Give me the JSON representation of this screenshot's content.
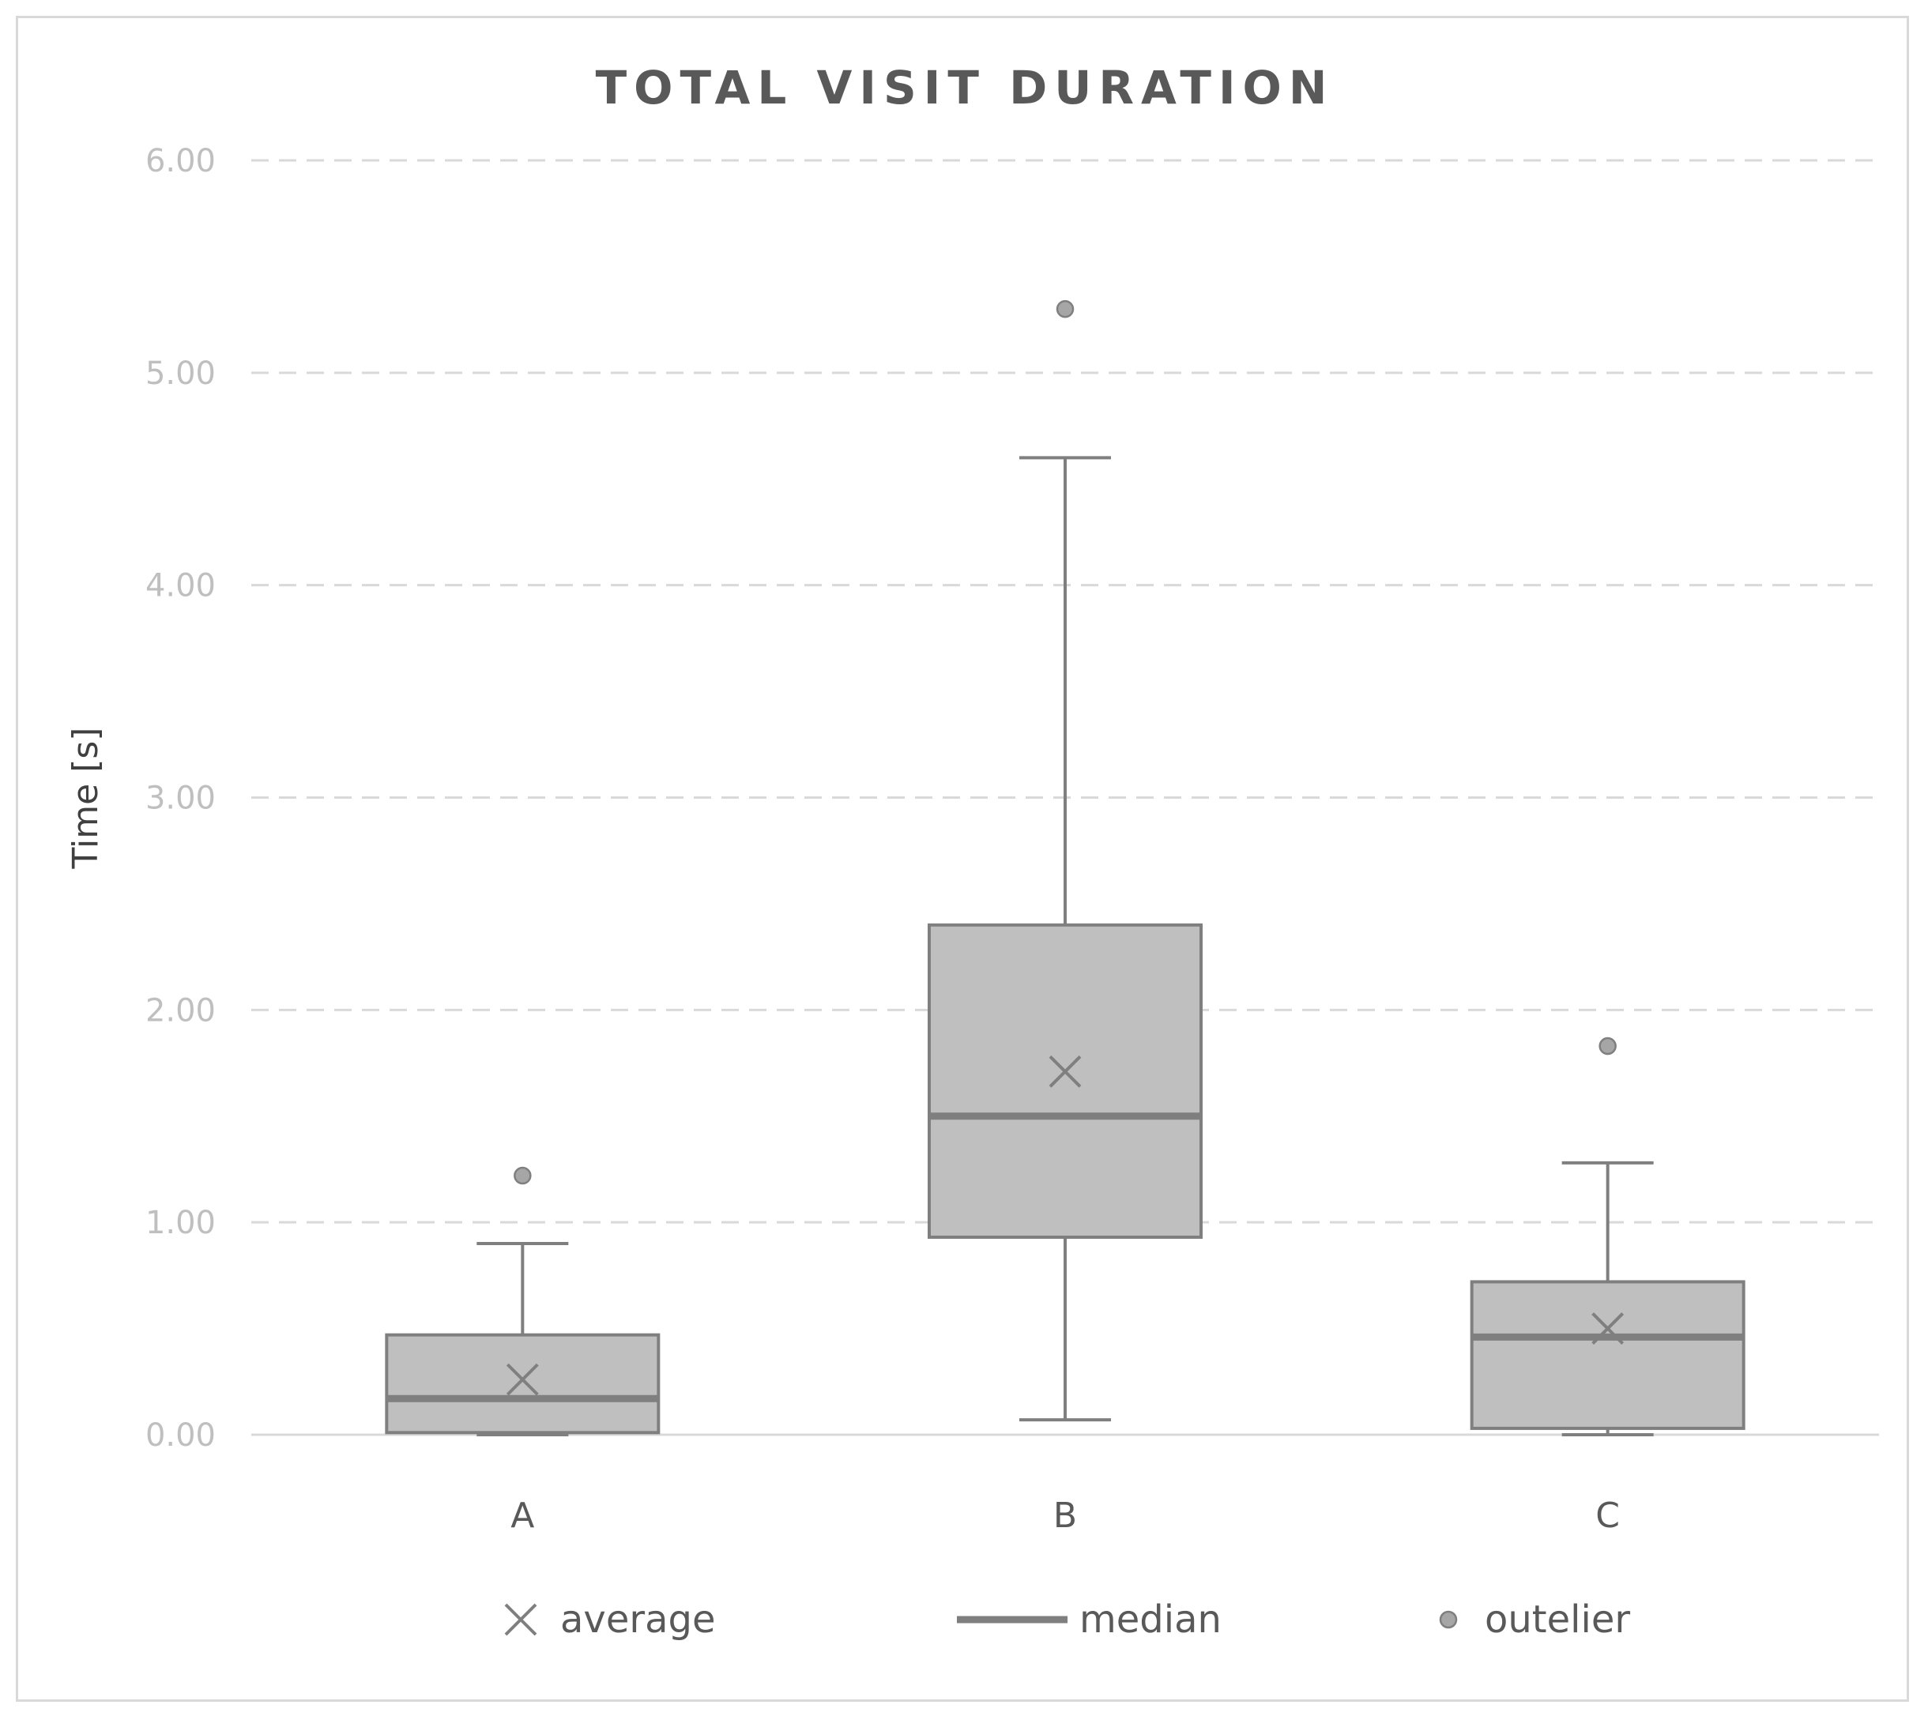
{
  "chart_data": {
    "type": "boxplot",
    "title": "TOTAL VISIT DURATION",
    "ylabel": "Time [s]",
    "xlabel": "",
    "ylim": [
      0,
      6
    ],
    "yticks": [
      "0.00",
      "1.00",
      "2.00",
      "3.00",
      "4.00",
      "5.00",
      "6.00"
    ],
    "grid": true,
    "categories": [
      "A",
      "B",
      "C"
    ],
    "boxes": [
      {
        "category": "A",
        "min": 0.0,
        "q1": 0.01,
        "median": 0.17,
        "q3": 0.47,
        "max": 0.9,
        "mean": 0.26,
        "outliers": [
          1.22
        ]
      },
      {
        "category": "B",
        "min": 0.07,
        "q1": 0.93,
        "median": 1.5,
        "q3": 2.4,
        "max": 4.6,
        "mean": 1.71,
        "outliers": [
          5.3
        ]
      },
      {
        "category": "C",
        "min": 0.0,
        "q1": 0.03,
        "median": 0.46,
        "q3": 0.72,
        "max": 1.28,
        "mean": 0.5,
        "outliers": [
          1.83
        ]
      }
    ],
    "legend": {
      "position": "bottom",
      "items": [
        {
          "symbol": "x-mark",
          "label": "average"
        },
        {
          "symbol": "line",
          "label": "median"
        },
        {
          "symbol": "dot",
          "label": "outelier"
        }
      ]
    },
    "colors": {
      "box_fill": "#bfbfbf",
      "box_stroke": "#7f7f7f",
      "median": "#7f7f7f",
      "whisker": "#7f7f7f",
      "outlier_fill": "#a6a6a6",
      "grid": "#d9d9d9",
      "axis": "#d9d9d9",
      "title": "#595959"
    }
  }
}
